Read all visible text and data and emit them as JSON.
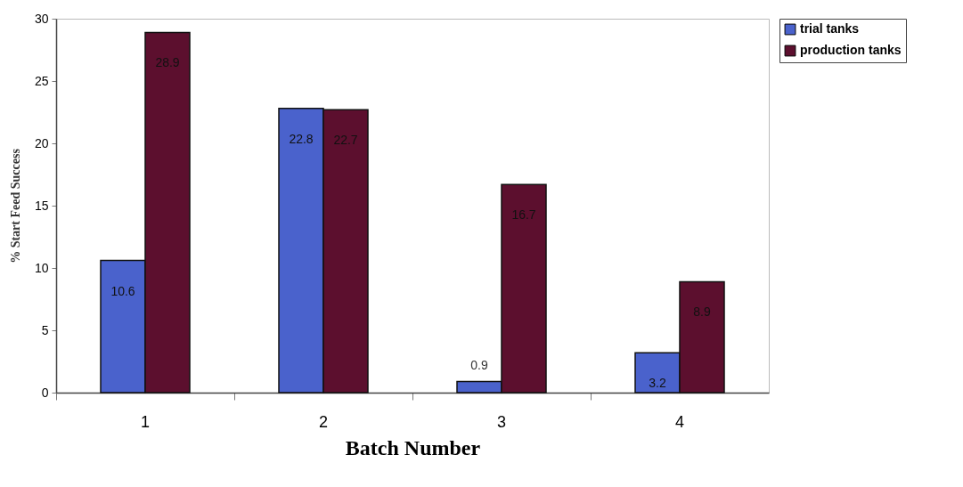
{
  "chart_data": {
    "type": "bar",
    "xlabel": "Batch Number",
    "ylabel": "% Start Feed Success",
    "categories": [
      "1",
      "2",
      "3",
      "4"
    ],
    "series": [
      {
        "name": "trial tanks",
        "color": "#4a62cc",
        "values": [
          10.6,
          22.8,
          0.9,
          3.2
        ]
      },
      {
        "name": "production tanks",
        "color": "#5c0f2e",
        "values": [
          28.9,
          22.7,
          16.7,
          8.9
        ]
      }
    ],
    "ylim": [
      0,
      30
    ],
    "yticks": [
      0,
      5,
      10,
      15,
      20,
      25,
      30
    ],
    "grid": false,
    "legend": "right",
    "data_labels": true
  }
}
